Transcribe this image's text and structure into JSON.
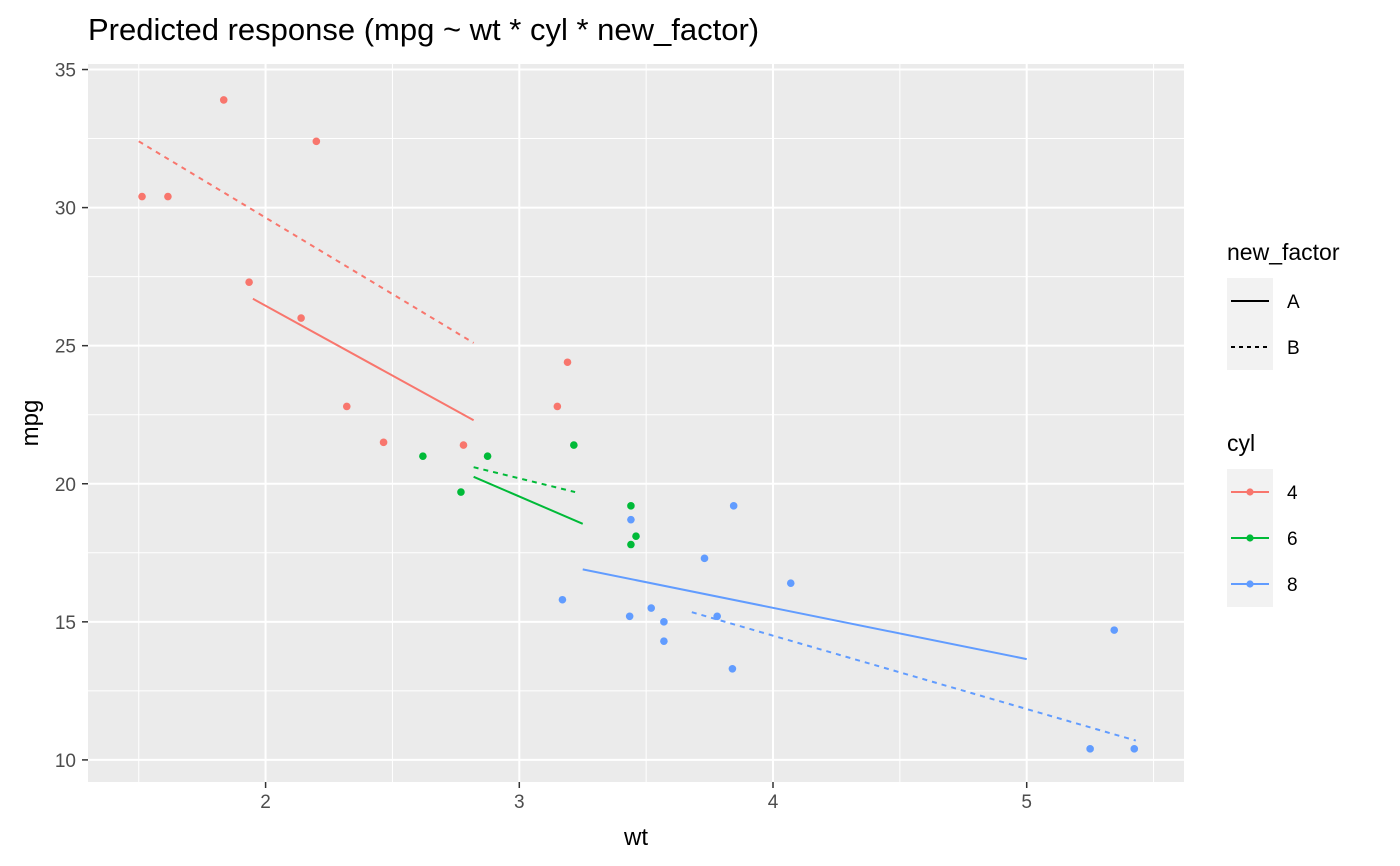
{
  "chart_data": {
    "type": "scatter",
    "title": "Predicted response (mpg ~ wt * cyl * new_factor)",
    "xlabel": "wt",
    "ylabel": "mpg",
    "xlim": [
      1.3,
      5.62
    ],
    "ylim": [
      9.2,
      35.2
    ],
    "x_ticks": [
      2,
      3,
      4,
      5
    ],
    "x_tick_labels": [
      "2",
      "3",
      "4",
      "5"
    ],
    "y_ticks": [
      10,
      15,
      20,
      25,
      30,
      35
    ],
    "y_tick_labels": [
      "10",
      "15",
      "20",
      "25",
      "30",
      "35"
    ],
    "grid": true,
    "colors": {
      "4": "#F8766D",
      "6": "#00BA38",
      "8": "#619CFF"
    },
    "series": [
      {
        "name": "4",
        "points": [
          [
            1.513,
            30.4
          ],
          [
            1.615,
            30.4
          ],
          [
            1.835,
            33.9
          ],
          [
            1.935,
            27.3
          ],
          [
            2.14,
            26.0
          ],
          [
            2.2,
            32.4
          ],
          [
            2.32,
            22.8
          ],
          [
            2.465,
            21.5
          ],
          [
            2.78,
            21.4
          ],
          [
            3.15,
            22.8
          ],
          [
            3.19,
            24.4
          ]
        ]
      },
      {
        "name": "6",
        "points": [
          [
            2.62,
            21.0
          ],
          [
            2.77,
            19.7
          ],
          [
            2.875,
            21.0
          ],
          [
            3.215,
            21.4
          ],
          [
            3.44,
            19.2
          ],
          [
            3.44,
            17.8
          ],
          [
            3.46,
            18.1
          ]
        ]
      },
      {
        "name": "8",
        "points": [
          [
            3.17,
            15.8
          ],
          [
            3.435,
            15.2
          ],
          [
            3.44,
            18.7
          ],
          [
            3.52,
            15.5
          ],
          [
            3.57,
            15.0
          ],
          [
            3.57,
            14.3
          ],
          [
            3.73,
            17.3
          ],
          [
            3.78,
            15.2
          ],
          [
            3.84,
            13.3
          ],
          [
            3.845,
            19.2
          ],
          [
            4.07,
            16.4
          ],
          [
            5.25,
            10.4
          ],
          [
            5.345,
            14.7
          ],
          [
            5.424,
            10.4
          ]
        ]
      }
    ],
    "fit_lines": [
      {
        "cyl": "4",
        "new_factor": "A",
        "x": [
          1.95,
          2.82
        ],
        "y": [
          26.7,
          22.3
        ]
      },
      {
        "cyl": "4",
        "new_factor": "B",
        "x": [
          1.5,
          2.82
        ],
        "y": [
          32.4,
          25.1
        ]
      },
      {
        "cyl": "6",
        "new_factor": "A",
        "x": [
          2.82,
          3.25
        ],
        "y": [
          20.25,
          18.55
        ]
      },
      {
        "cyl": "6",
        "new_factor": "B",
        "x": [
          2.82,
          3.22
        ],
        "y": [
          20.6,
          19.7
        ]
      },
      {
        "cyl": "8",
        "new_factor": "A",
        "x": [
          3.25,
          5.0
        ],
        "y": [
          16.9,
          13.65
        ]
      },
      {
        "cyl": "8",
        "new_factor": "B",
        "x": [
          3.68,
          5.43
        ],
        "y": [
          15.35,
          10.7
        ]
      }
    ],
    "legends": [
      {
        "title": "new_factor",
        "entries": [
          {
            "label": "A",
            "linetype": "solid"
          },
          {
            "label": "B",
            "linetype": "dashed"
          }
        ]
      },
      {
        "title": "cyl",
        "entries": [
          {
            "label": "4"
          },
          {
            "label": "6"
          },
          {
            "label": "8"
          }
        ]
      }
    ],
    "legend_position": "right"
  }
}
